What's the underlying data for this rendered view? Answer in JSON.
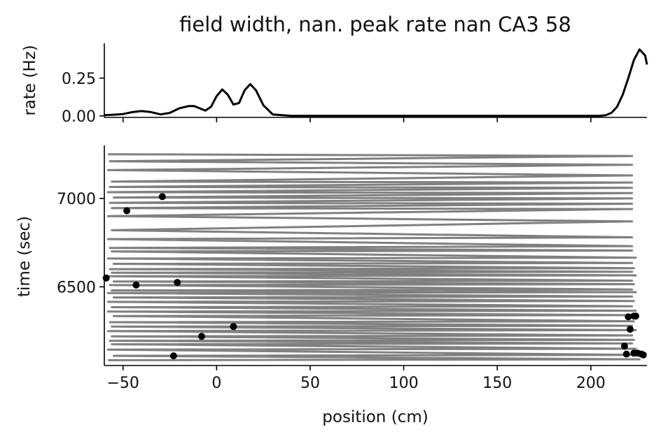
{
  "colors": {
    "rate_line": "#000000",
    "trajectory": "#808080",
    "spikes": "#000000",
    "axis": "#000000"
  },
  "chart_data": [
    {
      "type": "line",
      "title": "field width, nan. peak rate nan CA3 58",
      "xlabel": "",
      "ylabel": "rate (Hz)",
      "xlim": [
        -60,
        230
      ],
      "ylim": [
        -0.01,
        0.48
      ],
      "yticks": [
        0.0,
        0.25
      ],
      "ytick_labels": [
        "0.00",
        "0.25"
      ],
      "xticks": [
        -50,
        0,
        50,
        100,
        150,
        200
      ],
      "series": [
        {
          "name": "rate",
          "x": [
            -60,
            -55,
            -50,
            -45,
            -40,
            -35,
            -30,
            -25,
            -20,
            -15,
            -12,
            -9,
            -6,
            -3,
            0,
            3,
            6,
            9,
            12,
            15,
            18,
            21,
            25,
            30,
            40,
            60,
            80,
            100,
            120,
            140,
            160,
            180,
            190,
            195,
            200,
            205,
            208,
            211,
            214,
            217,
            220,
            223,
            226,
            229,
            230
          ],
          "y": [
            0.005,
            0.008,
            0.012,
            0.025,
            0.032,
            0.025,
            0.01,
            0.02,
            0.05,
            0.065,
            0.065,
            0.05,
            0.035,
            0.06,
            0.13,
            0.175,
            0.14,
            0.075,
            0.085,
            0.17,
            0.21,
            0.17,
            0.07,
            0.01,
            0.0,
            0.0,
            0.0,
            0.0,
            0.0,
            0.0,
            0.0,
            0.0,
            0.0,
            0.0,
            0.0,
            0.0,
            0.005,
            0.02,
            0.06,
            0.14,
            0.25,
            0.37,
            0.44,
            0.4,
            0.34
          ]
        }
      ]
    },
    {
      "type": "line",
      "title": "",
      "xlabel": "position (cm)",
      "ylabel": "time (sec)",
      "xlim": [
        -60,
        230
      ],
      "ylim": [
        6055,
        7300
      ],
      "yticks": [
        6500,
        7000
      ],
      "ytick_labels": [
        "6500",
        "7000"
      ],
      "xticks": [
        -50,
        0,
        50,
        100,
        150,
        200
      ],
      "xtick_labels": [
        "−50",
        "0",
        "50",
        "100",
        "150",
        "200"
      ],
      "trajectory": {
        "name": "trajectory",
        "t": [
          6085,
          6090,
          6110,
          6115,
          6145,
          6150,
          6175,
          6180,
          6195,
          6200,
          6220,
          6225,
          6250,
          6255,
          6275,
          6280,
          6300,
          6305,
          6335,
          6340,
          6360,
          6365,
          6385,
          6390,
          6415,
          6420,
          6440,
          6445,
          6465,
          6470,
          6480,
          6485,
          6510,
          6515,
          6530,
          6535,
          6560,
          6565,
          6580,
          6585,
          6600,
          6605,
          6630,
          6635,
          6660,
          6665,
          6700,
          6705,
          6720,
          6730,
          6770,
          6780,
          6820,
          6870,
          6900,
          6940,
          6945,
          6970,
          6975,
          7000,
          7005,
          7030,
          7035,
          7060,
          7065,
          7090,
          7095,
          7130,
          7160,
          7190,
          7210,
          7240,
          7250
        ],
        "x": [
          -58,
          226,
          -55,
          222,
          -58,
          224,
          -56,
          222,
          -57,
          223,
          -56,
          222,
          -58,
          224,
          -56,
          222,
          -57,
          223,
          -55,
          222,
          -58,
          224,
          -56,
          222,
          -58,
          223,
          -55,
          222,
          -58,
          224,
          -56,
          222,
          -57,
          223,
          -55,
          222,
          -58,
          224,
          -56,
          222,
          -57,
          223,
          -55,
          222,
          -58,
          224,
          -56,
          222,
          -57,
          222,
          -58,
          222,
          -56,
          222,
          -58,
          222,
          -56,
          222,
          -57,
          222,
          -55,
          222,
          -58,
          222,
          -57,
          222,
          -56,
          222,
          -58,
          222,
          -57,
          222,
          -58
        ]
      },
      "spikes": {
        "name": "spikes",
        "x": [
          -59,
          -48,
          -29,
          -43,
          -21,
          9,
          -8,
          -23,
          220,
          223,
          224,
          221,
          218,
          219,
          223,
          225,
          227,
          228
        ],
        "t": [
          6550,
          6930,
          7010,
          6510,
          6525,
          6275,
          6220,
          6110,
          6330,
          6335,
          6335,
          6260,
          6165,
          6120,
          6125,
          6125,
          6120,
          6115
        ]
      }
    }
  ]
}
